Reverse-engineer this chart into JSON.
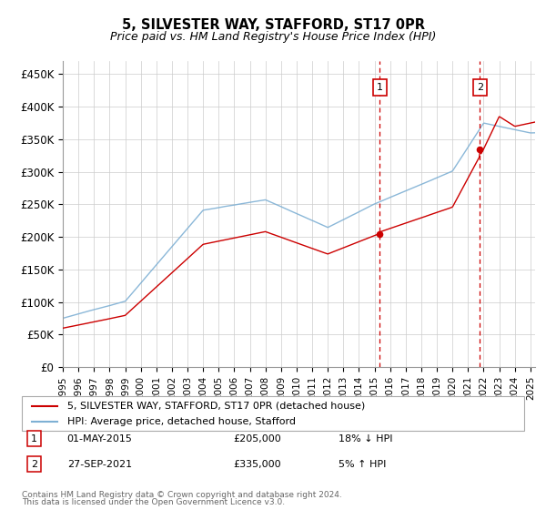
{
  "title": "5, SILVESTER WAY, STAFFORD, ST17 0PR",
  "subtitle": "Price paid vs. HM Land Registry's House Price Index (HPI)",
  "ylabel_ticks": [
    "£0",
    "£50K",
    "£100K",
    "£150K",
    "£200K",
    "£250K",
    "£300K",
    "£350K",
    "£400K",
    "£450K"
  ],
  "ytick_values": [
    0,
    50000,
    100000,
    150000,
    200000,
    250000,
    300000,
    350000,
    400000,
    450000
  ],
  "ylim": [
    0,
    470000
  ],
  "xlim_start": 1995.0,
  "xlim_end": 2025.3,
  "hpi_color": "#7eb0d4",
  "price_color": "#cc0000",
  "sale1_date": 2015.33,
  "sale1_price": 205000,
  "sale2_date": 2021.75,
  "sale2_price": 335000,
  "legend_label1": "5, SILVESTER WAY, STAFFORD, ST17 0PR (detached house)",
  "legend_label2": "HPI: Average price, detached house, Stafford",
  "footnote1": "Contains HM Land Registry data © Crown copyright and database right 2024.",
  "footnote2": "This data is licensed under the Open Government Licence v3.0.",
  "table_row1": [
    "1",
    "01-MAY-2015",
    "£205,000",
    "18% ↓ HPI"
  ],
  "table_row2": [
    "2",
    "27-SEP-2021",
    "£335,000",
    "5% ↑ HPI"
  ],
  "bg_color": "#ffffff",
  "grid_color": "#cccccc"
}
